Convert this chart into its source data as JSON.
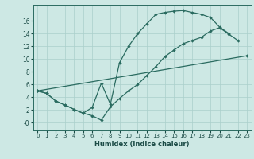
{
  "xlabel": "Humidex (Indice chaleur)",
  "bg_color": "#cde8e4",
  "grid_color": "#aacfcb",
  "line_color": "#2a6b60",
  "xlim": [
    -0.5,
    23.5
  ],
  "ylim": [
    -1.2,
    18.5
  ],
  "xticks": [
    0,
    1,
    2,
    3,
    4,
    5,
    6,
    7,
    8,
    9,
    10,
    11,
    12,
    13,
    14,
    15,
    16,
    17,
    18,
    19,
    20,
    21,
    22,
    23
  ],
  "yticks": [
    0,
    2,
    4,
    6,
    8,
    10,
    12,
    14,
    16
  ],
  "ytick_labels": [
    "-0",
    "2",
    "4",
    "6",
    "8",
    "10",
    "12",
    "14",
    "16"
  ],
  "line1_x": [
    0,
    1,
    2,
    3,
    4,
    5,
    6,
    7,
    8,
    9,
    10,
    11,
    12,
    13,
    14,
    15,
    16,
    17,
    18,
    19,
    20,
    21
  ],
  "line1_y": [
    5.0,
    4.6,
    3.4,
    2.8,
    2.1,
    1.5,
    2.4,
    6.2,
    2.9,
    9.4,
    12.0,
    14.0,
    15.5,
    17.0,
    17.3,
    17.5,
    17.6,
    17.3,
    17.0,
    16.5,
    15.0,
    14.0
  ],
  "line2_x": [
    0,
    1,
    2,
    3,
    4,
    5,
    6,
    7,
    8,
    9,
    10,
    11,
    12,
    13,
    14,
    15,
    16,
    17,
    18,
    19,
    20,
    21,
    22
  ],
  "line2_y": [
    5.0,
    4.6,
    3.4,
    2.8,
    2.1,
    1.5,
    1.1,
    0.4,
    2.5,
    3.8,
    5.0,
    6.0,
    7.4,
    8.8,
    10.4,
    11.4,
    12.4,
    12.9,
    13.4,
    14.4,
    14.9,
    13.9,
    12.9
  ],
  "line3_x": [
    0,
    23
  ],
  "line3_y": [
    5.0,
    10.5
  ]
}
